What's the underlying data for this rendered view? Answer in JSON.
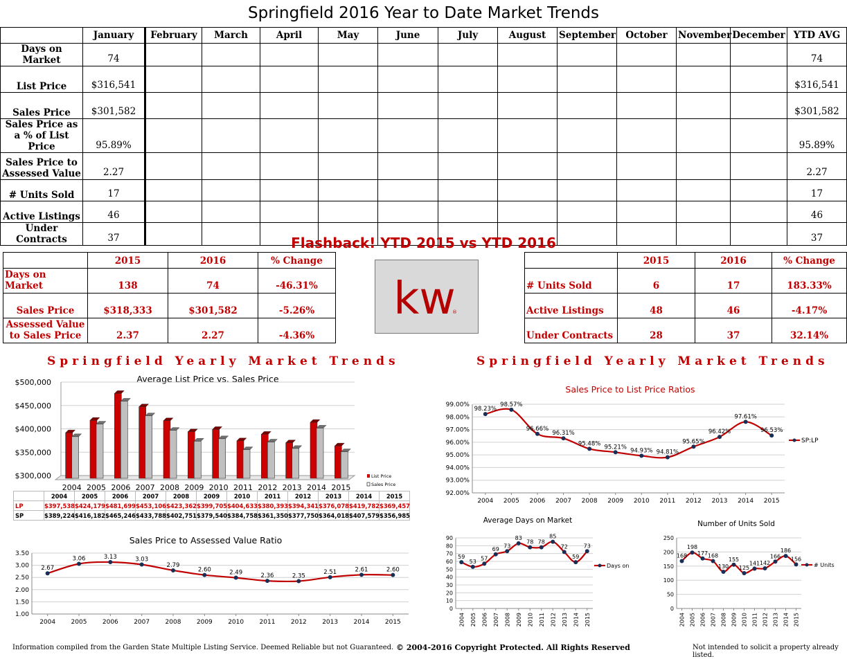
{
  "title": "Springfield 2016 Year to Date Market Trends",
  "ytd_table": {
    "headers": [
      "",
      "January",
      "February",
      "March",
      "April",
      "May",
      "June",
      "July",
      "August",
      "September",
      "October",
      "November",
      "December",
      "YTD AVG"
    ],
    "rows": [
      {
        "label": "Days on Market",
        "january": "74",
        "ytd_avg": "74"
      },
      {
        "label": "List Price",
        "january": "$316,541",
        "ytd_avg": "$316,541"
      },
      {
        "label": "Sales Price",
        "january": "$301,582",
        "ytd_avg": "$301,582"
      },
      {
        "label": "Sales Price as a % of List Price",
        "january": "95.89%",
        "ytd_avg": "95.89%"
      },
      {
        "label": "Sales Price to Assessed Value",
        "january": "2.27",
        "ytd_avg": "2.27"
      },
      {
        "label": "# Units Sold",
        "january": "17",
        "ytd_avg": "17"
      },
      {
        "label": "Active Listings",
        "january": "46",
        "ytd_avg": "46"
      },
      {
        "label": "Under Contracts",
        "january": "37",
        "ytd_avg": "37"
      }
    ]
  },
  "flashback": {
    "title": "Flashback!  YTD 2015 vs YTD 2016",
    "headers": [
      "",
      "2015",
      "2016",
      "% Change"
    ],
    "left_rows": [
      {
        "label": "Days on Market",
        "y2015": "138",
        "y2016": "74",
        "change": "-46.31%"
      },
      {
        "label": "Sales Price",
        "y2015": "$318,333",
        "y2016": "$301,582",
        "change": "-5.26%"
      },
      {
        "label": "Assessed Value to Sales Price",
        "y2015": "2.37",
        "y2016": "2.27",
        "change": "-4.36%"
      }
    ],
    "right_rows": [
      {
        "label": "# Units Sold",
        "y2015": "6",
        "y2016": "17",
        "change": "183.33%"
      },
      {
        "label": "Active Listings",
        "y2015": "48",
        "y2016": "46",
        "change": "-4.17%"
      },
      {
        "label": "Under Contracts",
        "y2015": "28",
        "y2016": "37",
        "change": "32.14%"
      }
    ]
  },
  "logo": {
    "text": "kw",
    "mark": "®"
  },
  "section_titles": {
    "left": "Springfield Yearly Market Trends",
    "right": "Springfield Yearly Market Trends"
  },
  "colors": {
    "red": "#c00000",
    "bar_red": "#cc0000",
    "bar_gray": "#c0c0c0",
    "line_red": "#c00000"
  },
  "chart_data": [
    {
      "type": "bar",
      "title": "Average List Price vs. Sales Price",
      "categories": [
        "2004",
        "2005",
        "2006",
        "2007",
        "2008",
        "2009",
        "2010",
        "2011",
        "2012",
        "2013",
        "2014",
        "2015"
      ],
      "series": [
        {
          "name": "List Price",
          "short": "LP",
          "values": [
            397538,
            424179,
            481699,
            453106,
            423362,
            399705,
            404633,
            380393,
            394341,
            376078,
            419782,
            369457
          ],
          "labels": [
            "$397,538",
            "$424,179",
            "$481,699",
            "$453,106",
            "$423,362",
            "$399,705",
            "$404,633",
            "$380,393",
            "$394,341",
            "$376,078",
            "$419,782",
            "$369,457"
          ]
        },
        {
          "name": "Sales Price",
          "short": "SP",
          "values": [
            389224,
            416182,
            465246,
            433788,
            402751,
            379540,
            384758,
            361350,
            377750,
            364018,
            407579,
            356985
          ],
          "labels": [
            "$389,224",
            "$416,182",
            "$465,246",
            "$433,788",
            "$402,751",
            "$379,540",
            "$384,758",
            "$361,350",
            "$377,750",
            "$364,018",
            "$407,579",
            "$356,985"
          ]
        }
      ],
      "ylim": [
        300000,
        500000
      ],
      "yticks": [
        "$300,000",
        "$350,000",
        "$400,000",
        "$450,000",
        "$500,000"
      ],
      "legend": "right"
    },
    {
      "type": "line",
      "title": "Sales Price to List Price Ratios",
      "x": [
        "2004",
        "2005",
        "2006",
        "2007",
        "2008",
        "2009",
        "2010",
        "2011",
        "2012",
        "2013",
        "2014",
        "2015"
      ],
      "series": [
        {
          "name": "SP:LP",
          "values": [
            98.23,
            98.57,
            96.66,
            96.31,
            95.48,
            95.21,
            94.93,
            94.81,
            95.65,
            96.42,
            97.61,
            96.53
          ],
          "labels": [
            "98.23%",
            "98.57%",
            "96.66%",
            "96.31%",
            "95.48%",
            "95.21%",
            "94.93%",
            "94.81%",
            "95.65%",
            "96.42%",
            "97.61%",
            "96.53%"
          ]
        }
      ],
      "ylim": [
        92,
        99
      ],
      "yticks": [
        "92.00%",
        "93.00%",
        "94.00%",
        "95.00%",
        "96.00%",
        "97.00%",
        "98.00%",
        "99.00%"
      ],
      "legend": "right"
    },
    {
      "type": "line",
      "title": "Sales Price to Assessed Value Ratio",
      "x": [
        "2004",
        "2005",
        "2006",
        "2007",
        "2008",
        "2009",
        "2010",
        "2011",
        "2012",
        "2013",
        "2014",
        "2015"
      ],
      "series": [
        {
          "name": "",
          "values": [
            2.67,
            3.06,
            3.13,
            3.03,
            2.79,
            2.6,
            2.49,
            2.36,
            2.35,
            2.51,
            2.61,
            2.6
          ],
          "labels": [
            "2.67",
            "3.06",
            "3.13",
            "3.03",
            "2.79",
            "2.60",
            "2.49",
            "2.36",
            "2.35",
            "2.51",
            "2.61",
            "2.60"
          ]
        }
      ],
      "ylim": [
        1.0,
        3.5
      ],
      "yticks": [
        "1.00",
        "1.50",
        "2.00",
        "2.50",
        "3.00",
        "3.50"
      ]
    },
    {
      "type": "line",
      "title": "Average Days on Market",
      "x": [
        "2004",
        "2005",
        "2006",
        "2007",
        "2008",
        "2009",
        "2010",
        "2011",
        "2012",
        "2013",
        "2014",
        "2015"
      ],
      "series": [
        {
          "name": "Days on Market",
          "values": [
            59,
            53,
            57,
            69,
            73,
            83,
            78,
            78,
            85,
            72,
            59,
            73
          ],
          "labels": [
            "59",
            "53",
            "57",
            "69",
            "73",
            "83",
            "78",
            "78",
            "85",
            "72",
            "59",
            "73"
          ]
        }
      ],
      "ylim": [
        0,
        90
      ],
      "yticks": [
        "0",
        "10",
        "20",
        "30",
        "40",
        "50",
        "60",
        "70",
        "80",
        "90"
      ],
      "legend": "right"
    },
    {
      "type": "line",
      "title": "Number of Units Sold",
      "x": [
        "2004",
        "2005",
        "2006",
        "2007",
        "2008",
        "2009",
        "2010",
        "2011",
        "2012",
        "2013",
        "2014",
        "2015"
      ],
      "series": [
        {
          "name": "# Units Sold",
          "values": [
            168,
            198,
            177,
            168,
            130,
            155,
            125,
            141,
            142,
            166,
            186,
            156
          ],
          "labels": [
            "168",
            "198",
            "177",
            "168",
            "130",
            "155",
            "125",
            "141",
            "142",
            "166",
            "186",
            "156"
          ]
        }
      ],
      "ylim": [
        0,
        250
      ],
      "yticks": [
        "0",
        "50",
        "100",
        "150",
        "200",
        "250"
      ],
      "legend": "right"
    }
  ],
  "footer": {
    "left": "Information compiled from the Garden State Multiple Listing Service.  Deemed Reliable but not Guaranteed.",
    "center": "© 2004-2016 Copyright Protected.  All Rights Reserved",
    "right": "Not intended to solicit a property already listed."
  }
}
